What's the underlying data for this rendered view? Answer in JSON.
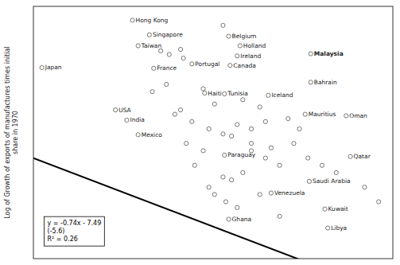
{
  "chart_data": {
    "type": "scatter",
    "ylabel": "Log of Growth of exports of manufactures times initial\nshare in 1970",
    "tick_labels": false,
    "grid": false,
    "xlim": [
      -1.2,
      11.5
    ],
    "ylim": [
      -13.5,
      3.8
    ],
    "xticks": [],
    "yticks": [],
    "color": "#666666",
    "marker": "circle",
    "x": [
      2.3,
      2.9,
      2.5,
      3.3,
      3.6,
      4.0,
      4.1,
      5.7,
      5.5,
      6.1,
      6.0,
      8.6,
      -0.9,
      3.05,
      4.4,
      5.75,
      8.6,
      4.85,
      5.55,
      7.1,
      1.7,
      2.1,
      2.5,
      8.4,
      9.85,
      3.5,
      4.8,
      5.2,
      6.2,
      6.8,
      4.0,
      4.4,
      5.0,
      5.5,
      6.0,
      6.5,
      7.0,
      3.0,
      3.8,
      5.55,
      10.0,
      8.55,
      7.2,
      9.1,
      5.7,
      9.2,
      6.5,
      7.0,
      7.5,
      6.2,
      5.5,
      5.0,
      5.2,
      5.6,
      6.0,
      8.0,
      8.5,
      9.0,
      9.5,
      10.5,
      4.2,
      4.8,
      7.8,
      8.2,
      5.8,
      6.5,
      7.2,
      4.5,
      5.8,
      6.8,
      7.5,
      11.0
    ],
    "values": [
      2.85,
      1.85,
      1.1,
      0.75,
      0.5,
      0.85,
      0.25,
      1.75,
      2.5,
      1.1,
      0.4,
      0.55,
      -0.4,
      -0.45,
      -0.15,
      -0.25,
      -1.4,
      -2.15,
      -2.2,
      -2.3,
      -3.3,
      -4.0,
      -5.0,
      -3.6,
      -3.7,
      -1.55,
      -1.85,
      -2.9,
      -2.6,
      -3.1,
      -3.3,
      -4.1,
      -4.6,
      -4.95,
      -4.3,
      -4.6,
      -4.1,
      -2.05,
      -3.6,
      -6.4,
      -6.5,
      -8.2,
      -9.0,
      -10.1,
      -10.8,
      -11.4,
      -6.1,
      -6.6,
      -7.1,
      -7.6,
      -7.9,
      -8.6,
      -9.1,
      -9.6,
      -10.0,
      -5.6,
      -6.6,
      -7.1,
      -7.6,
      -8.6,
      -5.6,
      -6.1,
      -3.9,
      -4.6,
      -5.1,
      -5.6,
      -5.9,
      -7.1,
      -8.1,
      -9.1,
      -10.6,
      -9.6
    ],
    "line": {
      "x": [
        -1.2,
        11.5
      ],
      "values": [
        -6.602,
        -16.0
      ],
      "color": "black",
      "line_style": "solid"
    },
    "equation": "y = -0.74x - 7.49\n(-5.6)\nR² = 0.26",
    "annotations": [
      {
        "text": "Hong Kong",
        "x": 2.3,
        "y": 2.85,
        "bold": false
      },
      {
        "text": "Singapore",
        "x": 2.9,
        "y": 1.85,
        "bold": false
      },
      {
        "text": "Taiwan",
        "x": 2.5,
        "y": 1.1,
        "bold": false
      },
      {
        "text": "Belgium",
        "x": 5.7,
        "y": 1.75,
        "bold": false
      },
      {
        "text": "Holland",
        "x": 6.1,
        "y": 1.1,
        "bold": false
      },
      {
        "text": "Ireland",
        "x": 6.0,
        "y": 0.4,
        "bold": false
      },
      {
        "text": "Malaysia",
        "x": 8.6,
        "y": 0.55,
        "bold": true
      },
      {
        "text": "Japan",
        "x": -0.9,
        "y": -0.4,
        "bold": false
      },
      {
        "text": "France",
        "x": 3.05,
        "y": -0.45,
        "bold": false
      },
      {
        "text": "Portugal",
        "x": 4.4,
        "y": -0.15,
        "bold": false
      },
      {
        "text": "Canada",
        "x": 5.75,
        "y": -0.25,
        "bold": false
      },
      {
        "text": "Bahrain",
        "x": 8.6,
        "y": -1.4,
        "bold": false
      },
      {
        "text": "Haiti",
        "x": 4.85,
        "y": -2.15,
        "bold": false
      },
      {
        "text": "Tunisia",
        "x": 5.55,
        "y": -2.2,
        "bold": false
      },
      {
        "text": "Iceland",
        "x": 7.1,
        "y": -2.3,
        "bold": false
      },
      {
        "text": "USA",
        "x": 1.7,
        "y": -3.3,
        "bold": false
      },
      {
        "text": "India",
        "x": 2.1,
        "y": -4.0,
        "bold": false
      },
      {
        "text": "Mexico",
        "x": 2.5,
        "y": -5.0,
        "bold": false
      },
      {
        "text": "Mauritius",
        "x": 8.4,
        "y": -3.6,
        "bold": false
      },
      {
        "text": "Oman",
        "x": 9.85,
        "y": -3.7,
        "bold": false
      },
      {
        "text": "Paraguay",
        "x": 5.55,
        "y": -6.4,
        "bold": false
      },
      {
        "text": "Qatar",
        "x": 10.0,
        "y": -6.5,
        "bold": false
      },
      {
        "text": "Saudi Arabia",
        "x": 8.55,
        "y": -8.2,
        "bold": false
      },
      {
        "text": "Venezuela",
        "x": 7.2,
        "y": -9.0,
        "bold": false
      },
      {
        "text": "Kuwait",
        "x": 9.1,
        "y": -10.1,
        "bold": false
      },
      {
        "text": "Ghana",
        "x": 5.7,
        "y": -10.8,
        "bold": false
      },
      {
        "text": "Libya",
        "x": 9.2,
        "y": -11.4,
        "bold": false
      }
    ]
  }
}
